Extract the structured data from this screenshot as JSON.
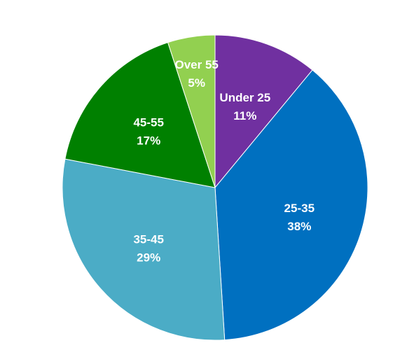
{
  "chart_data": {
    "type": "pie",
    "title": "",
    "start_angle_deg": 0,
    "direction": "clockwise",
    "legend": "none",
    "slices": [
      {
        "label": "Under 25",
        "value": 11,
        "value_label": "11%",
        "color": "#7030A0"
      },
      {
        "label": "25-35",
        "value": 38,
        "value_label": "38%",
        "color": "#0070C0"
      },
      {
        "label": "35-45",
        "value": 29,
        "value_label": "29%",
        "color": "#4BACC6"
      },
      {
        "label": "45-55",
        "value": 17,
        "value_label": "17%",
        "color": "#008000"
      },
      {
        "label": "Over 55",
        "value": 5,
        "value_label": "5%",
        "color": "#92D050"
      }
    ]
  }
}
